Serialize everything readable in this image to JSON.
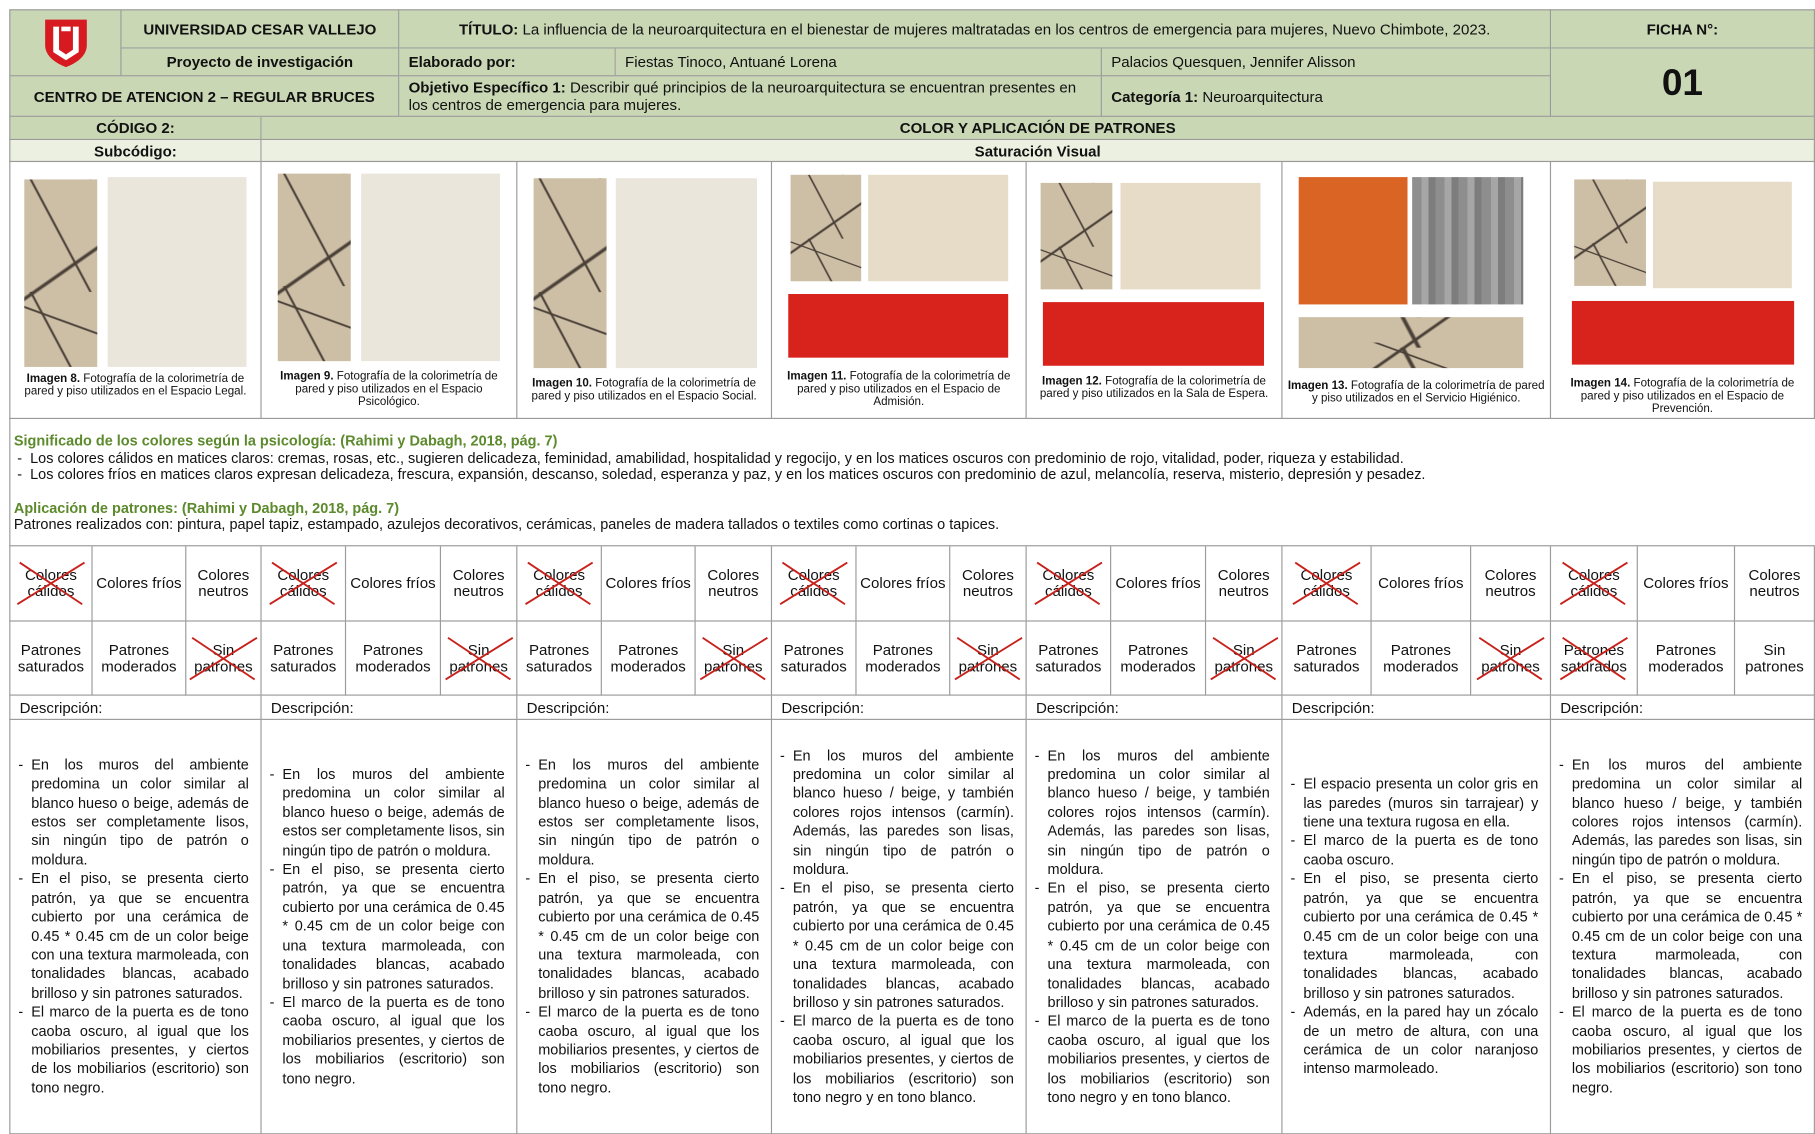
{
  "header": {
    "university": "UNIVERSIDAD CESAR VALLEJO",
    "title_label": "TÍTULO:",
    "title": "La influencia de la neuroarquitectura en el bienestar de mujeres maltratadas en los centros de emergencia para mujeres, Nuevo Chimbote, 2023.",
    "ficha_label": "FICHA N°:",
    "ficha_number": "01",
    "project": "Proyecto de investigación",
    "elaborated_label": "Elaborado por:",
    "authors": [
      "Fiestas Tinoco, Antuané Lorena",
      "Palacios Quesquen, Jennifer Alisson"
    ],
    "center": "CENTRO DE ATENCION 2 – REGULAR BRUCES",
    "objective_label": "Objetivo Específico 1:",
    "objective": "Describir qué principios de la neuroarquitectura se encuentran presentes en los centros de emergencia para mujeres.",
    "category_label": "Categoría 1:",
    "category": "Neuroarquitectura"
  },
  "section": {
    "code_label": "CÓDIGO 2:",
    "heading": "COLOR Y APLICACIÓN DE PATRONES",
    "subcode_label": "Subcódigo:",
    "subheading": "Saturación Visual"
  },
  "psychology": {
    "title": "Significado de los colores según la psicología: (Rahimi y Dabagh, 2018, pág. 7)",
    "items": [
      "Los colores cálidos en matices claros: cremas, rosas, etc., sugieren delicadeza, feminidad, amabilidad, hospitalidad y regocijo, y en los matices oscuros con predominio de rojo, vitalidad, poder, riqueza y estabilidad.",
      "Los colores fríos en matices claros expresan delicadeza, frescura, expansión, descanso, soledad, esperanza y paz, y en los matices oscuros con predominio de azul, melancolía, reserva, misterio, depresión y pesadez."
    ]
  },
  "patterns_info": {
    "title": "Aplicación de patrones: (Rahimi y Dabagh, 2018, pág. 7)",
    "text": "Patrones realizados con: pintura, papel tapiz, estampado, azulejos decorativos, cerámicas, paneles de madera tallados o textiles como cortinas o tapices."
  },
  "columns": [
    {
      "caption_label": "Imagen 8.",
      "caption": "Fotografía de la colorimetría de pared y piso utilizados en el Espacio Legal.",
      "colors": [
        {
          "label": "Colores cálidos",
          "crossed": true
        },
        {
          "label": "Colores fríos",
          "crossed": false
        },
        {
          "label": "Colores neutros",
          "crossed": false
        }
      ],
      "patterns": [
        {
          "label": "Patrones saturados",
          "crossed": false
        },
        {
          "label": "Patrones moderados",
          "crossed": false
        },
        {
          "label": "Sin patrones",
          "crossed": true
        }
      ],
      "description_label": "Descripción:",
      "description": [
        "En los muros del ambiente predomina un color similar al blanco hueso o beige, además de estos ser completamente lisos, sin ningún tipo de patrón o moldura.",
        "En el piso, se presenta cierto patrón, ya que se encuentra cubierto por una cerámica de 0.45 * 0.45 cm de un color beige con una textura marmoleada, con tonalidades blancas, acabado brilloso y sin patrones saturados.",
        "El marco de la puerta es de tono caoba oscuro, al igual que los mobiliarios presentes, y ciertos de los mobiliarios (escritorio) son tono negro."
      ]
    },
    {
      "caption_label": "Imagen 9.",
      "caption": "Fotografía de la colorimetría de pared y piso utilizados en el Espacio Psicológico.",
      "colors": [
        {
          "label": "Colores cálidos",
          "crossed": true
        },
        {
          "label": "Colores fríos",
          "crossed": false
        },
        {
          "label": "Colores neutros",
          "crossed": false
        }
      ],
      "patterns": [
        {
          "label": "Patrones saturados",
          "crossed": false
        },
        {
          "label": "Patrones moderados",
          "crossed": false
        },
        {
          "label": "Sin patrones",
          "crossed": true
        }
      ],
      "description_label": "Descripción:",
      "description": [
        "En los muros del ambiente predomina un color similar al blanco hueso o beige, además de estos ser completamente lisos, sin ningún tipo de patrón o moldura.",
        "En el piso, se presenta cierto patrón, ya que se encuentra cubierto por una cerámica de 0.45 * 0.45 cm de un color beige con una textura marmoleada, con tonalidades blancas, acabado brilloso y sin patrones saturados.",
        "El marco de la puerta es de tono caoba oscuro, al igual que los mobiliarios presentes, y ciertos de los mobiliarios (escritorio) son tono negro."
      ]
    },
    {
      "caption_label": "Imagen 10.",
      "caption": "Fotografía de la colorimetría de pared y piso utilizados en el Espacio Social.",
      "colors": [
        {
          "label": "Colores cálidos",
          "crossed": true
        },
        {
          "label": "Colores fríos",
          "crossed": false
        },
        {
          "label": "Colores neutros",
          "crossed": false
        }
      ],
      "patterns": [
        {
          "label": "Patrones saturados",
          "crossed": false
        },
        {
          "label": "Patrones moderados",
          "crossed": false
        },
        {
          "label": "Sin patrones",
          "crossed": true
        }
      ],
      "description_label": "Descripción:",
      "description": [
        "En los muros del ambiente predomina un color similar al blanco hueso o beige, además de estos ser completamente lisos, sin ningún tipo de patrón o moldura.",
        "En el piso, se presenta cierto patrón, ya que se encuentra cubierto por una cerámica de 0.45 * 0.45 cm de un color beige con una textura marmoleada, con tonalidades blancas, acabado brilloso y sin patrones saturados.",
        "El marco de la puerta es de tono caoba oscuro, al igual que los mobiliarios presentes, y ciertos de los mobiliarios (escritorio) son tono negro."
      ]
    },
    {
      "caption_label": "Imagen 11.",
      "caption": "Fotografía de la colorimetría de pared y piso utilizados en el Espacio de Admisión.",
      "colors": [
        {
          "label": "Colores cálidos",
          "crossed": true
        },
        {
          "label": "Colores fríos",
          "crossed": false
        },
        {
          "label": "Colores neutros",
          "crossed": false
        }
      ],
      "patterns": [
        {
          "label": "Patrones saturados",
          "crossed": false
        },
        {
          "label": "Patrones moderados",
          "crossed": false
        },
        {
          "label": "Sin patrones",
          "crossed": true
        }
      ],
      "description_label": "Descripción:",
      "description": [
        "En los muros del ambiente predomina un color similar al blanco hueso / beige, y también colores rojos intensos (carmín). Además, las paredes son lisas, sin ningún tipo de patrón o moldura.",
        "En el piso, se presenta cierto patrón, ya que se encuentra cubierto por una cerámica de 0.45 * 0.45 cm de un color beige con una textura marmoleada, con tonalidades blancas, acabado brilloso y sin patrones saturados.",
        "El marco de la puerta es de tono caoba oscuro, al igual que los mobiliarios presentes, y ciertos de los mobiliarios (escritorio) son tono negro y en tono blanco."
      ]
    },
    {
      "caption_label": "Imagen 12.",
      "caption": "Fotografía de la colorimetría de pared y piso utilizados en la Sala de Espera.",
      "colors": [
        {
          "label": "Colores cálidos",
          "crossed": true
        },
        {
          "label": "Colores fríos",
          "crossed": false
        },
        {
          "label": "Colores neutros",
          "crossed": false
        }
      ],
      "patterns": [
        {
          "label": "Patrones saturados",
          "crossed": false
        },
        {
          "label": "Patrones moderados",
          "crossed": false
        },
        {
          "label": "Sin patrones",
          "crossed": true
        }
      ],
      "description_label": "Descripción:",
      "description": [
        "En los muros del ambiente predomina un color similar al blanco hueso / beige, y también colores rojos intensos (carmín). Además, las paredes son lisas, sin ningún tipo de patrón o moldura.",
        "En el piso, se presenta cierto patrón, ya que se encuentra cubierto por una cerámica de 0.45 * 0.45 cm de un color beige con una textura marmoleada, con tonalidades blancas, acabado brilloso y sin patrones saturados.",
        "El marco de la puerta es de tono caoba oscuro, al igual que los mobiliarios presentes, y ciertos de los mobiliarios (escritorio) son tono negro y en tono blanco."
      ]
    },
    {
      "caption_label": "Imagen 13.",
      "caption": "Fotografía de la colorimetría de pared y piso utilizados en el Servicio Higiénico.",
      "colors": [
        {
          "label": "Colores cálidos",
          "crossed": true
        },
        {
          "label": "Colores fríos",
          "crossed": false
        },
        {
          "label": "Colores neutros",
          "crossed": false
        }
      ],
      "patterns": [
        {
          "label": "Patrones saturados",
          "crossed": false
        },
        {
          "label": "Patrones moderados",
          "crossed": false
        },
        {
          "label": "Sin patrones",
          "crossed": true
        }
      ],
      "description_label": "Descripción:",
      "description": [
        "El espacio presenta un color gris en las paredes (muros sin tarrajear) y tiene una textura rugosa en ella.",
        "El marco de la puerta es de tono caoba oscuro.",
        "En el piso, se presenta cierto patrón, ya que se encuentra cubierto por una cerámica de 0.45 * 0.45 cm de un color beige con una textura marmoleada, con tonalidades blancas, acabado brilloso y sin patrones saturados.",
        "Además, en la pared hay un zócalo de un metro de altura, con una cerámica de un color naranjoso intenso marmoleado."
      ]
    },
    {
      "caption_label": "Imagen 14.",
      "caption": "Fotografía de la colorimetría de pared y piso utilizados en el Espacio de Prevención.",
      "colors": [
        {
          "label": "Colores cálidos",
          "crossed": true
        },
        {
          "label": "Colores fríos",
          "crossed": false
        },
        {
          "label": "Colores neutros",
          "crossed": false
        }
      ],
      "patterns": [
        {
          "label": "Patrones saturados",
          "crossed": true
        },
        {
          "label": "Patrones moderados",
          "crossed": false
        },
        {
          "label": "Sin patrones",
          "crossed": false
        }
      ],
      "description_label": "Descripción:",
      "description": [
        "En los muros del ambiente predomina un color similar al blanco hueso / beige, y también colores rojos intensos (carmín). Además, las paredes son lisas, sin ningún tipo de patrón o moldura.",
        "En el piso, se presenta cierto patrón, ya que se encuentra cubierto por una cerámica de 0.45 * 0.45 cm de un color beige con una textura marmoleada, con tonalidades blancas, acabado brilloso y sin patrones saturados.",
        "El marco de la puerta es de tono caoba oscuro, al igual que los mobiliarios presentes, y ciertos de los mobiliarios (escritorio) son tono negro."
      ]
    }
  ]
}
